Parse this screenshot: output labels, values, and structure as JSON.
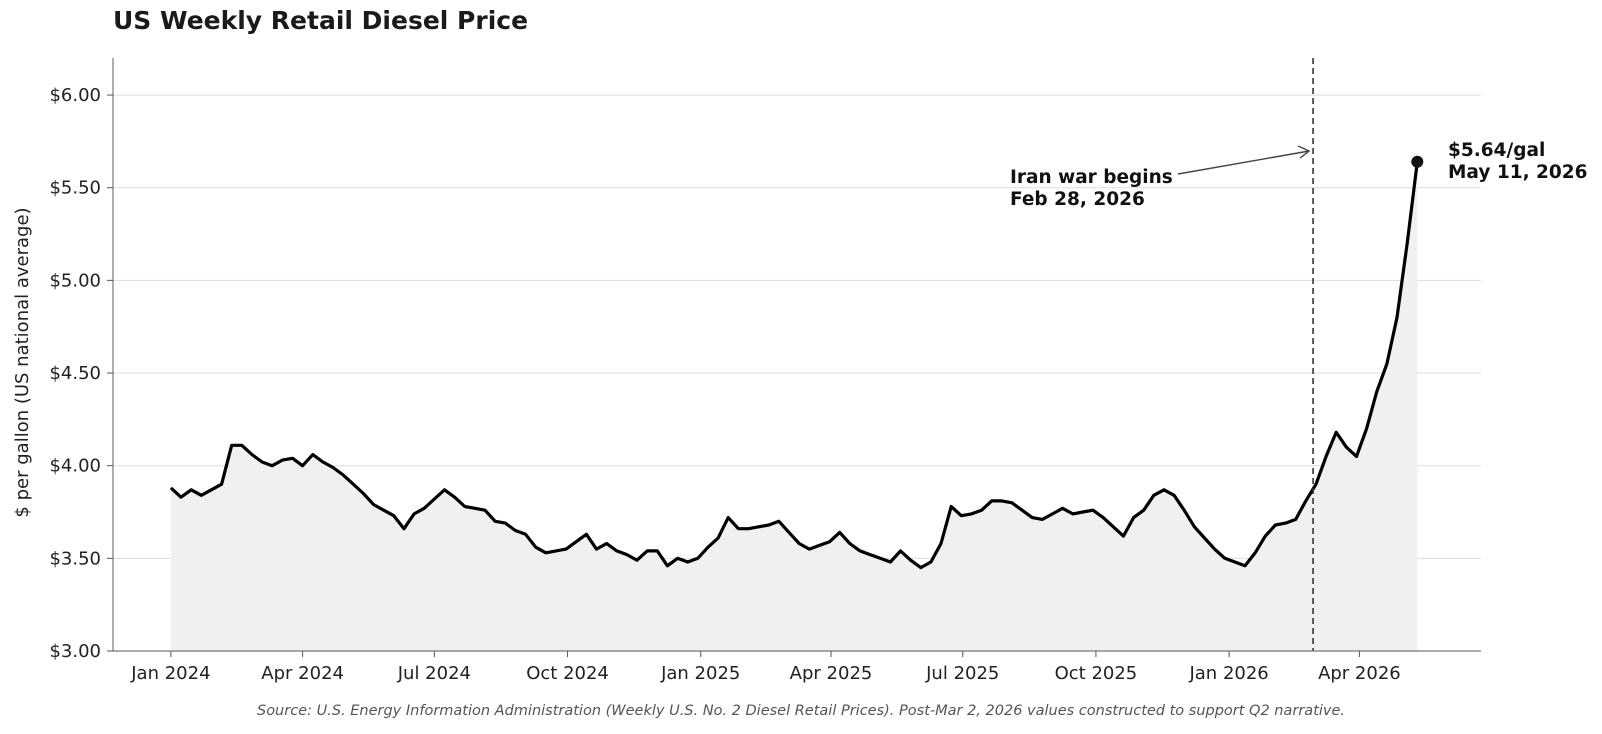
{
  "chart_data": {
    "type": "line",
    "title": "US Weekly Retail Diesel Price",
    "ylabel": "$ per gallon (US national average)",
    "xlabel": "",
    "ylim": [
      3.0,
      6.2
    ],
    "yticks": [
      {
        "value": 3.0,
        "label": "$3.00"
      },
      {
        "value": 3.5,
        "label": "$3.50"
      },
      {
        "value": 4.0,
        "label": "$4.00"
      },
      {
        "value": 4.5,
        "label": "$4.50"
      },
      {
        "value": 5.0,
        "label": "$5.00"
      },
      {
        "value": 5.5,
        "label": "$5.50"
      },
      {
        "value": 6.0,
        "label": "$6.00"
      }
    ],
    "xlim": [
      "2023-11-22",
      "2026-06-24"
    ],
    "xticks": [
      {
        "date": "2024-01-01",
        "label": "Jan 2024"
      },
      {
        "date": "2024-04-01",
        "label": "Apr 2024"
      },
      {
        "date": "2024-07-01",
        "label": "Jul 2024"
      },
      {
        "date": "2024-10-01",
        "label": "Oct 2024"
      },
      {
        "date": "2025-01-01",
        "label": "Jan 2025"
      },
      {
        "date": "2025-04-01",
        "label": "Apr 2025"
      },
      {
        "date": "2025-07-01",
        "label": "Jul 2025"
      },
      {
        "date": "2025-10-01",
        "label": "Oct 2025"
      },
      {
        "date": "2026-01-01",
        "label": "Jan 2026"
      },
      {
        "date": "2026-04-01",
        "label": "Apr 2026"
      }
    ],
    "grid": "horizontal",
    "series": [
      {
        "color": "#000000",
        "fill_color": "#f0f0f0",
        "points": [
          {
            "x": "2024-01-01",
            "y": 3.88
          },
          {
            "x": "2024-01-08",
            "y": 3.83
          },
          {
            "x": "2024-01-15",
            "y": 3.87
          },
          {
            "x": "2024-01-22",
            "y": 3.84
          },
          {
            "x": "2024-01-29",
            "y": 3.87
          },
          {
            "x": "2024-02-05",
            "y": 3.9
          },
          {
            "x": "2024-02-12",
            "y": 4.11
          },
          {
            "x": "2024-02-19",
            "y": 4.11
          },
          {
            "x": "2024-02-26",
            "y": 4.06
          },
          {
            "x": "2024-03-04",
            "y": 4.02
          },
          {
            "x": "2024-03-11",
            "y": 4.0
          },
          {
            "x": "2024-03-18",
            "y": 4.03
          },
          {
            "x": "2024-03-25",
            "y": 4.04
          },
          {
            "x": "2024-04-01",
            "y": 4.0
          },
          {
            "x": "2024-04-08",
            "y": 4.06
          },
          {
            "x": "2024-04-15",
            "y": 4.02
          },
          {
            "x": "2024-04-22",
            "y": 3.99
          },
          {
            "x": "2024-04-29",
            "y": 3.95
          },
          {
            "x": "2024-05-06",
            "y": 3.9
          },
          {
            "x": "2024-05-13",
            "y": 3.85
          },
          {
            "x": "2024-05-20",
            "y": 3.79
          },
          {
            "x": "2024-05-27",
            "y": 3.76
          },
          {
            "x": "2024-06-03",
            "y": 3.73
          },
          {
            "x": "2024-06-10",
            "y": 3.66
          },
          {
            "x": "2024-06-17",
            "y": 3.74
          },
          {
            "x": "2024-06-24",
            "y": 3.77
          },
          {
            "x": "2024-07-01",
            "y": 3.82
          },
          {
            "x": "2024-07-08",
            "y": 3.87
          },
          {
            "x": "2024-07-15",
            "y": 3.83
          },
          {
            "x": "2024-07-22",
            "y": 3.78
          },
          {
            "x": "2024-07-29",
            "y": 3.77
          },
          {
            "x": "2024-08-05",
            "y": 3.76
          },
          {
            "x": "2024-08-12",
            "y": 3.7
          },
          {
            "x": "2024-08-19",
            "y": 3.69
          },
          {
            "x": "2024-08-26",
            "y": 3.65
          },
          {
            "x": "2024-09-02",
            "y": 3.63
          },
          {
            "x": "2024-09-09",
            "y": 3.56
          },
          {
            "x": "2024-09-16",
            "y": 3.53
          },
          {
            "x": "2024-09-23",
            "y": 3.54
          },
          {
            "x": "2024-09-30",
            "y": 3.55
          },
          {
            "x": "2024-10-07",
            "y": 3.59
          },
          {
            "x": "2024-10-14",
            "y": 3.63
          },
          {
            "x": "2024-10-21",
            "y": 3.55
          },
          {
            "x": "2024-10-28",
            "y": 3.58
          },
          {
            "x": "2024-11-04",
            "y": 3.54
          },
          {
            "x": "2024-11-11",
            "y": 3.52
          },
          {
            "x": "2024-11-18",
            "y": 3.49
          },
          {
            "x": "2024-11-25",
            "y": 3.54
          },
          {
            "x": "2024-12-02",
            "y": 3.54
          },
          {
            "x": "2024-12-09",
            "y": 3.46
          },
          {
            "x": "2024-12-16",
            "y": 3.5
          },
          {
            "x": "2024-12-23",
            "y": 3.48
          },
          {
            "x": "2024-12-30",
            "y": 3.5
          },
          {
            "x": "2025-01-06",
            "y": 3.56
          },
          {
            "x": "2025-01-13",
            "y": 3.61
          },
          {
            "x": "2025-01-20",
            "y": 3.72
          },
          {
            "x": "2025-01-27",
            "y": 3.66
          },
          {
            "x": "2025-02-03",
            "y": 3.66
          },
          {
            "x": "2025-02-10",
            "y": 3.67
          },
          {
            "x": "2025-02-17",
            "y": 3.68
          },
          {
            "x": "2025-02-24",
            "y": 3.7
          },
          {
            "x": "2025-03-03",
            "y": 3.64
          },
          {
            "x": "2025-03-10",
            "y": 3.58
          },
          {
            "x": "2025-03-17",
            "y": 3.55
          },
          {
            "x": "2025-03-24",
            "y": 3.57
          },
          {
            "x": "2025-03-31",
            "y": 3.59
          },
          {
            "x": "2025-04-07",
            "y": 3.64
          },
          {
            "x": "2025-04-14",
            "y": 3.58
          },
          {
            "x": "2025-04-21",
            "y": 3.54
          },
          {
            "x": "2025-04-28",
            "y": 3.52
          },
          {
            "x": "2025-05-05",
            "y": 3.5
          },
          {
            "x": "2025-05-12",
            "y": 3.48
          },
          {
            "x": "2025-05-19",
            "y": 3.54
          },
          {
            "x": "2025-05-26",
            "y": 3.49
          },
          {
            "x": "2025-06-02",
            "y": 3.45
          },
          {
            "x": "2025-06-09",
            "y": 3.48
          },
          {
            "x": "2025-06-16",
            "y": 3.58
          },
          {
            "x": "2025-06-23",
            "y": 3.78
          },
          {
            "x": "2025-06-30",
            "y": 3.73
          },
          {
            "x": "2025-07-07",
            "y": 3.74
          },
          {
            "x": "2025-07-14",
            "y": 3.76
          },
          {
            "x": "2025-07-21",
            "y": 3.81
          },
          {
            "x": "2025-07-28",
            "y": 3.81
          },
          {
            "x": "2025-08-04",
            "y": 3.8
          },
          {
            "x": "2025-08-11",
            "y": 3.76
          },
          {
            "x": "2025-08-18",
            "y": 3.72
          },
          {
            "x": "2025-08-25",
            "y": 3.71
          },
          {
            "x": "2025-09-01",
            "y": 3.74
          },
          {
            "x": "2025-09-08",
            "y": 3.77
          },
          {
            "x": "2025-09-15",
            "y": 3.74
          },
          {
            "x": "2025-09-22",
            "y": 3.75
          },
          {
            "x": "2025-09-29",
            "y": 3.76
          },
          {
            "x": "2025-10-06",
            "y": 3.72
          },
          {
            "x": "2025-10-13",
            "y": 3.67
          },
          {
            "x": "2025-10-20",
            "y": 3.62
          },
          {
            "x": "2025-10-27",
            "y": 3.72
          },
          {
            "x": "2025-11-03",
            "y": 3.76
          },
          {
            "x": "2025-11-10",
            "y": 3.84
          },
          {
            "x": "2025-11-17",
            "y": 3.87
          },
          {
            "x": "2025-11-24",
            "y": 3.84
          },
          {
            "x": "2025-12-01",
            "y": 3.76
          },
          {
            "x": "2025-12-08",
            "y": 3.67
          },
          {
            "x": "2025-12-15",
            "y": 3.61
          },
          {
            "x": "2025-12-22",
            "y": 3.55
          },
          {
            "x": "2025-12-29",
            "y": 3.5
          },
          {
            "x": "2026-01-05",
            "y": 3.48
          },
          {
            "x": "2026-01-12",
            "y": 3.46
          },
          {
            "x": "2026-01-19",
            "y": 3.53
          },
          {
            "x": "2026-01-26",
            "y": 3.62
          },
          {
            "x": "2026-02-02",
            "y": 3.68
          },
          {
            "x": "2026-02-09",
            "y": 3.69
          },
          {
            "x": "2026-02-16",
            "y": 3.71
          },
          {
            "x": "2026-02-23",
            "y": 3.81
          },
          {
            "x": "2026-03-02",
            "y": 3.9
          },
          {
            "x": "2026-03-09",
            "y": 4.05
          },
          {
            "x": "2026-03-16",
            "y": 4.18
          },
          {
            "x": "2026-03-23",
            "y": 4.1
          },
          {
            "x": "2026-03-30",
            "y": 4.05
          },
          {
            "x": "2026-04-06",
            "y": 4.2
          },
          {
            "x": "2026-04-13",
            "y": 4.4
          },
          {
            "x": "2026-04-20",
            "y": 4.55
          },
          {
            "x": "2026-04-27",
            "y": 4.8
          },
          {
            "x": "2026-05-04",
            "y": 5.2
          },
          {
            "x": "2026-05-11",
            "y": 5.64
          }
        ]
      }
    ],
    "annotations": {
      "event": {
        "date": "2026-02-28",
        "line1": "Iran war begins",
        "line2": "Feb 28, 2026"
      },
      "last_point": {
        "date": "2026-05-11",
        "value": 5.64,
        "line1": "$5.64/gal",
        "line2": "May 11, 2026"
      }
    },
    "source": "Source: U.S. Energy Information Administration (Weekly U.S. No. 2 Diesel Retail Prices). Post-Mar 2, 2026 values constructed to support Q2 narrative."
  }
}
